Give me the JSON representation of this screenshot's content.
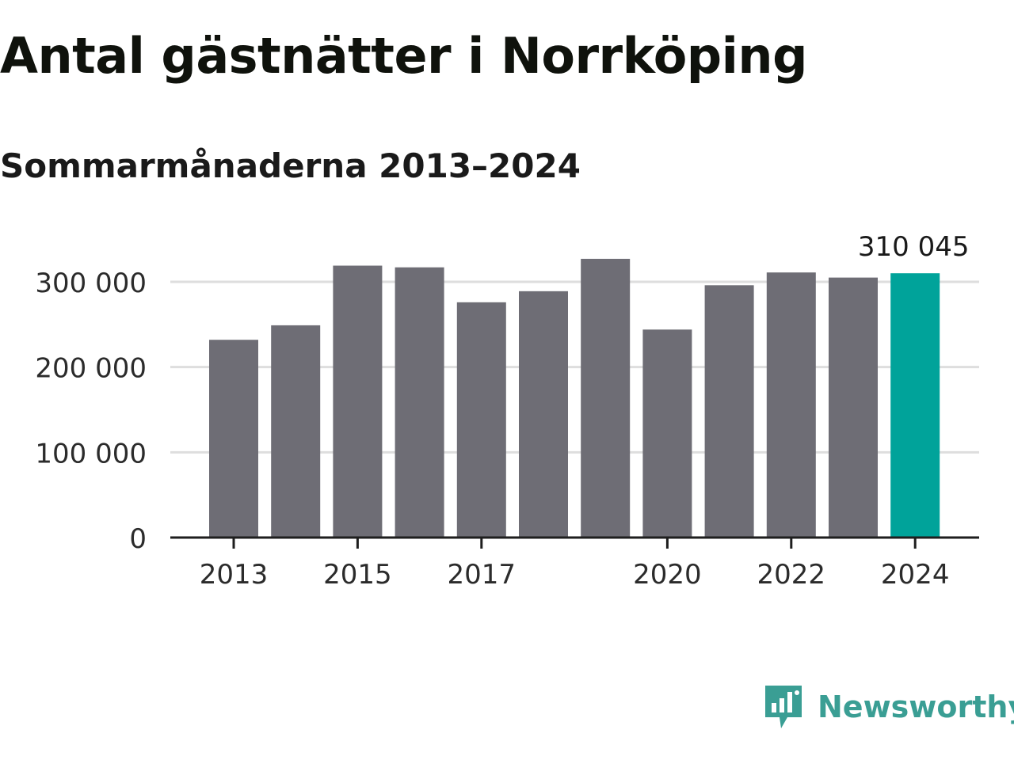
{
  "header": {
    "title": "Antal gästnätter i Norrköping",
    "subtitle": "Sommarmånaderna 2013–2024"
  },
  "chart_data": {
    "type": "bar",
    "categories": [
      "2013",
      "2014",
      "2015",
      "2016",
      "2017",
      "2018",
      "2019",
      "2020",
      "2021",
      "2022",
      "2023",
      "2024"
    ],
    "values": [
      232000,
      249000,
      319000,
      317000,
      276000,
      289000,
      327000,
      244000,
      296000,
      311000,
      305000,
      310045
    ],
    "x_tick_labels": [
      "2013",
      "2015",
      "2017",
      "2020",
      "2022",
      "2024"
    ],
    "y_ticks": [
      0,
      100000,
      200000,
      300000
    ],
    "y_tick_labels": [
      "0",
      "100 000",
      "200 000",
      "300 000"
    ],
    "ylim": [
      0,
      330000
    ],
    "highlight_index": 11,
    "highlight_label": "310 045",
    "grid": true,
    "colors": {
      "bar": "#6e6d75",
      "highlight": "#00a39a",
      "grid": "#dedede",
      "axis": "#1e1e1e",
      "text": "#2b2b2b"
    }
  },
  "branding": {
    "logo_text": "Newsworthy",
    "logo_icon": "newsworthy-chart-bubble-icon",
    "logo_color": "#3a9e94"
  }
}
